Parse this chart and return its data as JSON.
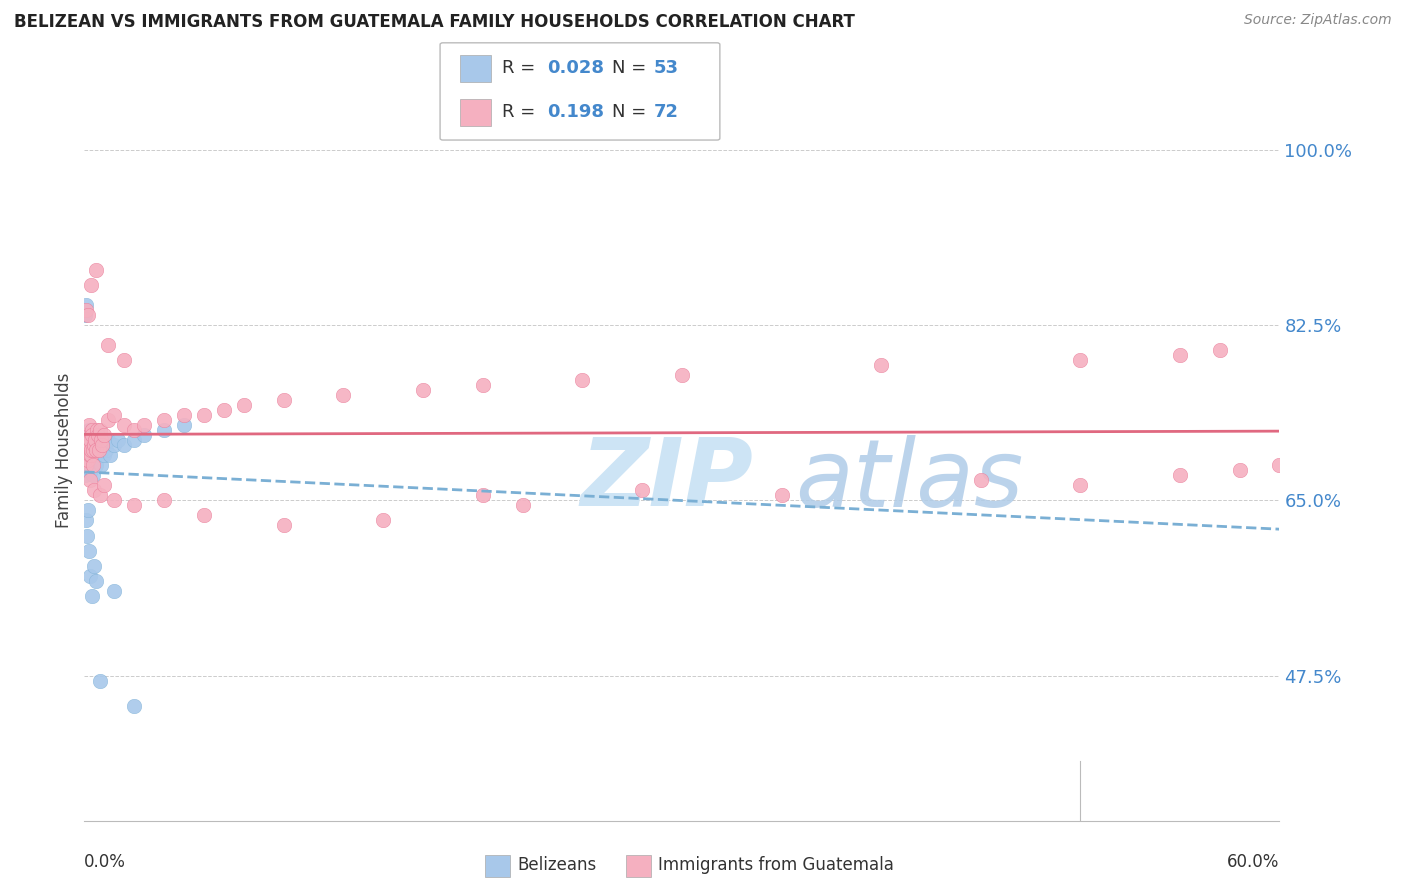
{
  "title": "BELIZEAN VS IMMIGRANTS FROM GUATEMALA FAMILY HOUSEHOLDS CORRELATION CHART",
  "source": "Source: ZipAtlas.com",
  "ylabel": "Family Households",
  "yticks": [
    47.5,
    65.0,
    82.5,
    100.0
  ],
  "xlim": [
    0.0,
    60.0
  ],
  "ylim": [
    33.0,
    107.0
  ],
  "belizean_color": "#a8c8ea",
  "belizean_edge": "#7aafd4",
  "belizean_line_color": "#7aafd4",
  "guatemala_color": "#f5b0c0",
  "guatemala_edge": "#e87090",
  "guatemala_line_color": "#e06880",
  "watermark_zip_color": "#cde4f5",
  "watermark_atlas_color": "#b0cce8",
  "legend_box_color": "#dddddd",
  "r_n_color": "#4488cc",
  "belizean_x": [
    0.05,
    0.08,
    0.1,
    0.12,
    0.15,
    0.18,
    0.2,
    0.22,
    0.25,
    0.28,
    0.3,
    0.32,
    0.35,
    0.38,
    0.4,
    0.42,
    0.45,
    0.48,
    0.5,
    0.52,
    0.55,
    0.58,
    0.6,
    0.65,
    0.7,
    0.75,
    0.8,
    0.85,
    0.9,
    1.0,
    1.1,
    1.2,
    1.3,
    1.5,
    1.7,
    2.0,
    2.5,
    3.0,
    4.0,
    5.0,
    0.05,
    0.08,
    0.1,
    0.15,
    0.2,
    0.25,
    0.3,
    0.4,
    0.5,
    0.6,
    0.8,
    1.5,
    2.5
  ],
  "belizean_y": [
    67.5,
    68.0,
    70.0,
    71.5,
    69.5,
    68.5,
    70.5,
    72.0,
    71.0,
    69.0,
    70.0,
    68.0,
    69.5,
    71.0,
    70.5,
    68.5,
    67.5,
    69.0,
    70.0,
    71.5,
    70.0,
    68.5,
    69.5,
    70.5,
    71.0,
    70.0,
    69.5,
    68.5,
    70.0,
    69.5,
    70.0,
    71.0,
    69.5,
    70.5,
    71.0,
    70.5,
    71.0,
    71.5,
    72.0,
    72.5,
    83.5,
    84.5,
    63.0,
    61.5,
    64.0,
    60.0,
    57.5,
    55.5,
    58.5,
    57.0,
    47.0,
    56.0,
    44.5
  ],
  "guatemala_x": [
    0.05,
    0.08,
    0.1,
    0.12,
    0.15,
    0.18,
    0.2,
    0.22,
    0.25,
    0.28,
    0.3,
    0.32,
    0.35,
    0.38,
    0.4,
    0.42,
    0.45,
    0.5,
    0.55,
    0.6,
    0.65,
    0.7,
    0.75,
    0.8,
    0.85,
    0.9,
    1.0,
    1.2,
    1.5,
    2.0,
    2.5,
    3.0,
    4.0,
    5.0,
    6.0,
    7.0,
    8.0,
    10.0,
    13.0,
    17.0,
    20.0,
    25.0,
    30.0,
    40.0,
    50.0,
    55.0,
    57.0,
    0.3,
    0.5,
    0.8,
    1.0,
    1.5,
    2.5,
    4.0,
    6.0,
    10.0,
    15.0,
    20.0,
    22.0,
    28.0,
    35.0,
    45.0,
    50.0,
    55.0,
    58.0,
    60.0,
    0.1,
    0.2,
    0.35,
    0.6,
    1.2,
    2.0
  ],
  "guatemala_y": [
    69.0,
    68.5,
    70.0,
    71.5,
    70.5,
    69.0,
    71.0,
    72.5,
    70.5,
    69.5,
    71.0,
    69.5,
    70.0,
    72.0,
    71.5,
    70.0,
    68.5,
    70.5,
    71.0,
    70.0,
    72.0,
    71.5,
    70.0,
    72.0,
    71.0,
    70.5,
    71.5,
    73.0,
    73.5,
    72.5,
    72.0,
    72.5,
    73.0,
    73.5,
    73.5,
    74.0,
    74.5,
    75.0,
    75.5,
    76.0,
    76.5,
    77.0,
    77.5,
    78.5,
    79.0,
    79.5,
    80.0,
    67.0,
    66.0,
    65.5,
    66.5,
    65.0,
    64.5,
    65.0,
    63.5,
    62.5,
    63.0,
    65.5,
    64.5,
    66.0,
    65.5,
    67.0,
    66.5,
    67.5,
    68.0,
    68.5,
    84.0,
    83.5,
    86.5,
    88.0,
    80.5,
    79.0
  ]
}
